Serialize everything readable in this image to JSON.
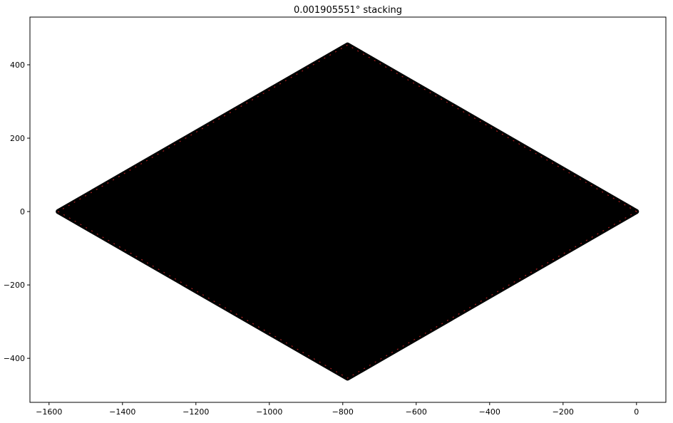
{
  "chart_data": {
    "type": "scatter",
    "title": "0.001905551° stacking",
    "xlabel": "",
    "ylabel": "",
    "xlim": [
      -1652,
      80
    ],
    "ylim": [
      -520,
      530
    ],
    "xticks": [
      -1600,
      -1400,
      -1200,
      -1000,
      -800,
      -600,
      -400,
      -200,
      0
    ],
    "yticks": [
      -400,
      -200,
      0,
      200,
      400
    ],
    "grid": false,
    "legend": "none",
    "series": [
      {
        "color": "#000000",
        "outline": [
          [
            0,
            0
          ],
          [
            -787,
            454
          ],
          [
            -1575,
            0
          ],
          [
            -787,
            -454
          ]
        ]
      },
      {
        "color": "#d62728",
        "outline": [
          [
            0,
            0
          ],
          [
            -787,
            454
          ],
          [
            -1575,
            0
          ],
          [
            -787,
            -454
          ]
        ]
      }
    ]
  }
}
